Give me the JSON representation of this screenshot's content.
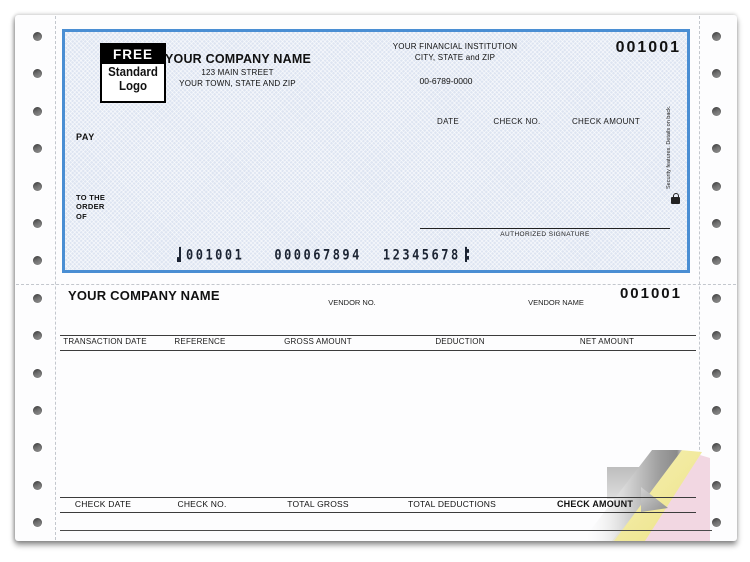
{
  "colors": {
    "check-border": "#4a8ed3",
    "check-bg": "#dde4f1",
    "canary": "#f4eda6",
    "pink": "#f2d7e2",
    "micr": "#1c2433"
  },
  "check": {
    "number": "001001",
    "logo": {
      "top": "FREE",
      "line1": "Standard",
      "line2": "Logo"
    },
    "company": {
      "name": "YOUR COMPANY NAME",
      "address1": "123 MAIN STREET",
      "address2": "YOUR TOWN, STATE AND ZIP"
    },
    "bank": {
      "line1": "YOUR FINANCIAL INSTITUTION",
      "line2": "CITY, STATE and ZIP",
      "fraction": "00-6789-0000"
    },
    "labels": {
      "date": "DATE",
      "check_no": "CHECK NO.",
      "check_amount": "CHECK AMOUNT",
      "pay": "PAY",
      "to_the_order_of": "TO THE\nORDER\nOF",
      "authorized_signature": "AUTHORIZED SIGNATURE"
    },
    "security_note": "Security features. Details on back.",
    "micr": {
      "check_number": "001001",
      "routing": "000067894",
      "account": "12345678"
    }
  },
  "stub": {
    "company_name": "YOUR COMPANY NAME",
    "vendor_no_label": "VENDOR NO.",
    "vendor_name_label": "VENDOR NAME",
    "check_number": "001001",
    "columns": [
      "TRANSACTION DATE",
      "REFERENCE",
      "GROSS AMOUNT",
      "DEDUCTION",
      "NET AMOUNT"
    ],
    "totals": [
      "CHECK DATE",
      "CHECK NO.",
      "TOTAL GROSS",
      "TOTAL DEDUCTIONS",
      "CHECK AMOUNT"
    ]
  }
}
